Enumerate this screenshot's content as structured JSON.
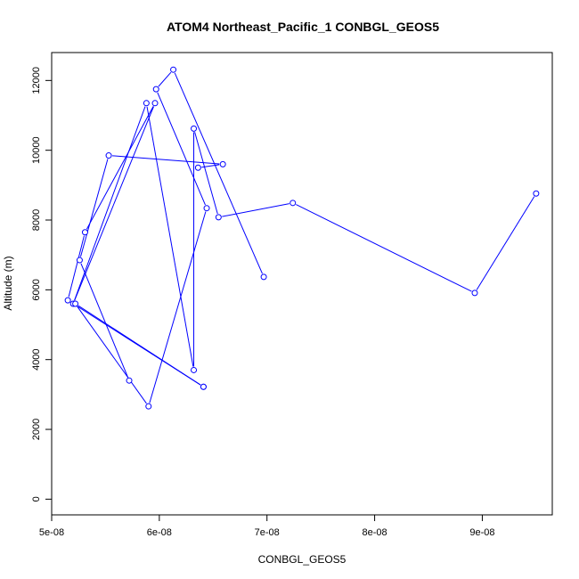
{
  "chart_data": {
    "type": "line",
    "title": "ATOM4 Northeast_Pacific_1 CONBGL_GEOS5",
    "xlabel": "CONBGL_GEOS5",
    "ylabel": "Altitude (m)",
    "xlim": [
      5e-08,
      9.65e-08
    ],
    "ylim": [
      -450,
      12800
    ],
    "x_ticks": [
      5e-08,
      6e-08,
      7e-08,
      8e-08,
      9e-08
    ],
    "x_tick_labels": [
      "5e-08",
      "6e-08",
      "7e-08",
      "8e-08",
      "9e-08"
    ],
    "y_ticks": [
      0,
      2000,
      4000,
      6000,
      8000,
      10000,
      12000
    ],
    "y_tick_labels": [
      "0",
      "2000",
      "4000",
      "6000",
      "8000",
      "10000",
      "12000"
    ],
    "grid": false,
    "series": [
      {
        "color": "#0000ff",
        "marker": "open-circle",
        "points": [
          {
            "x": 6.41e-08,
            "y": 3220
          },
          {
            "x": 5.15e-08,
            "y": 5700
          },
          {
            "x": 5.31e-08,
            "y": 7650
          },
          {
            "x": 5.96e-08,
            "y": 11350
          },
          {
            "x": 5.2e-08,
            "y": 5600
          },
          {
            "x": 5.88e-08,
            "y": 11350
          },
          {
            "x": 6.32e-08,
            "y": 3700
          },
          {
            "x": 6.32e-08,
            "y": 10620
          },
          {
            "x": 6.55e-08,
            "y": 8080
          },
          {
            "x": 7.24e-08,
            "y": 8490
          },
          {
            "x": 8.93e-08,
            "y": 5910
          },
          {
            "x": 9.5e-08,
            "y": 8760
          }
        ]
      },
      {
        "color": "#0000ff",
        "marker": "open-circle",
        "points": [
          {
            "x": 6.97e-08,
            "y": 6370
          },
          {
            "x": 6.13e-08,
            "y": 12310
          },
          {
            "x": 5.97e-08,
            "y": 11750
          },
          {
            "x": 6.44e-08,
            "y": 8340
          },
          {
            "x": 5.9e-08,
            "y": 2660
          },
          {
            "x": 5.22e-08,
            "y": 5600
          },
          {
            "x": 6.41e-08,
            "y": 3220
          }
        ]
      },
      {
        "color": "#0000ff",
        "marker": "open-circle",
        "points": [
          {
            "x": 5.72e-08,
            "y": 3400
          },
          {
            "x": 5.26e-08,
            "y": 6850
          },
          {
            "x": 5.53e-08,
            "y": 9850
          },
          {
            "x": 6.59e-08,
            "y": 9600
          },
          {
            "x": 6.36e-08,
            "y": 9500
          }
        ]
      }
    ]
  }
}
